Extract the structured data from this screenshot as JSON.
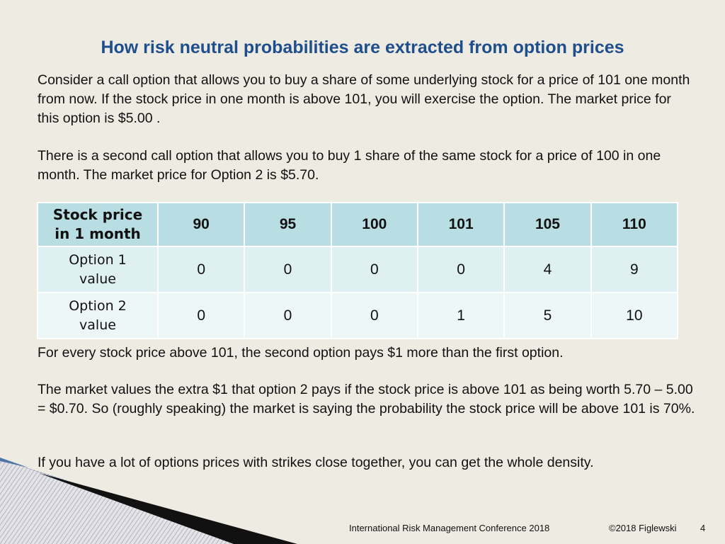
{
  "title": "How risk neutral probabilities are extracted from option prices",
  "paragraphs": {
    "p1": "Consider a call option that allows you to buy a share of some underlying stock for a price of 101 one month from now.  If the stock price in one month is above 101, you will exercise the option.  The market price for this option is $5.00 .",
    "p2": "There is a second call option that allows you to buy 1 share of the same stock for a price of 100 in one month.  The market price for Option 2 is $5.70.",
    "p3": "For every stock price above 101, the second option pays $1 more than the first option.",
    "p4": "The market values the extra $1 that option 2 pays if the stock price is above 101 as being worth 5.70 – 5.00 = $0.70.  So (roughly speaking) the market is saying the probability the stock price will be above 101 is 70%.",
    "p5": "If you have a lot of options prices with strikes close together, you can get the whole density."
  },
  "table": {
    "header_label_line1": "Stock price",
    "header_label_line2": "in 1 month",
    "prices": [
      "90",
      "95",
      "100",
      "101",
      "105",
      "110"
    ],
    "rows": [
      {
        "label_line1": "Option 1",
        "label_line2": "value",
        "values": [
          "0",
          "0",
          "0",
          "0",
          "4",
          "9"
        ]
      },
      {
        "label_line1": "Option 2",
        "label_line2": "value",
        "values": [
          "0",
          "0",
          "0",
          "1",
          "5",
          "10"
        ]
      }
    ]
  },
  "footer": {
    "conference": "International Risk Management Conference 2018",
    "copyright": "©2018 Figlewski",
    "page_number": "4"
  },
  "colors": {
    "title": "#1f4e8c",
    "background": "#eeebe2",
    "table_header": "#b8dde2",
    "table_row1": "#dff0f2",
    "table_row2": "#eef7f8"
  }
}
